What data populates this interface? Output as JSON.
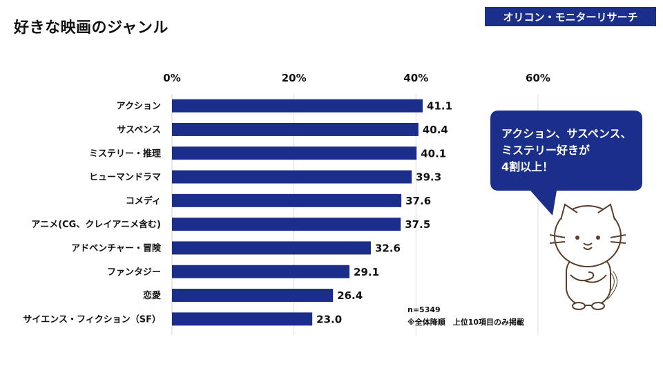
{
  "title": "好きな映画のジャンル",
  "brand": "オリコン・モニターリサーチ",
  "callout": [
    "アクション、サスペンス、",
    "ミステリー好きが",
    "4割以上！"
  ],
  "notes": {
    "sample": "n=5349",
    "caption": "※全体降順　上位10項目のみ掲載"
  },
  "colors": {
    "bar": "#1a2e8a",
    "bubble": "#1a2e8a",
    "brand": "#1a2e8a"
  },
  "chart_data": {
    "type": "bar",
    "orientation": "horizontal",
    "categories": [
      "アクション",
      "サスペンス",
      "ミステリー・推理",
      "ヒューマンドラマ",
      "コメディ",
      "アニメ(CG、クレイアニメ含む)",
      "アドベンチャー・冒険",
      "ファンタジー",
      "恋愛",
      "サイエンス・フィクション（SF）"
    ],
    "values": [
      41.1,
      40.4,
      40.1,
      39.3,
      37.6,
      37.5,
      32.6,
      29.1,
      26.4,
      23.0
    ],
    "value_labels": [
      "41.1",
      "40.4",
      "40.1",
      "39.3",
      "37.6",
      "37.5",
      "32.6",
      "29.1",
      "26.4",
      "23.0"
    ],
    "xticks": [
      "0%",
      "20%",
      "40%",
      "60%"
    ],
    "xlim": [
      0,
      60
    ],
    "grid": true,
    "xlabel": "",
    "ylabel": ""
  }
}
